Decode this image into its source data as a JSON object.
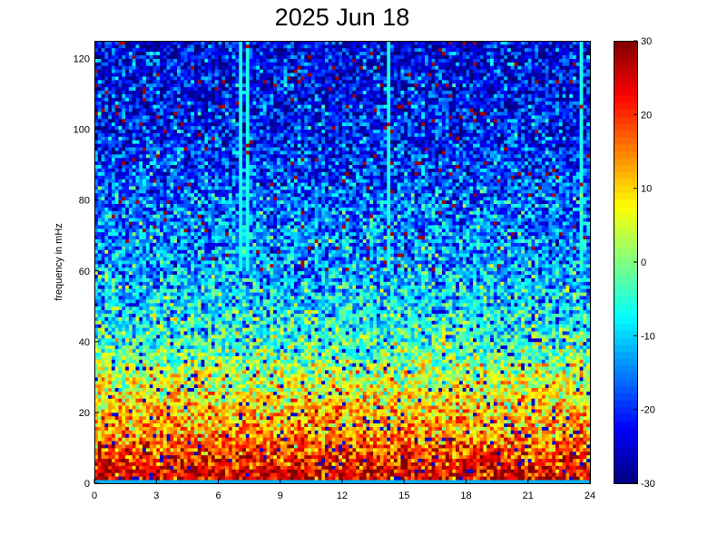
{
  "chart_data": {
    "type": "heatmap",
    "title": "2025 Jun 18",
    "xlabel": "",
    "ylabel": "frequency in mHz",
    "xlim": [
      0,
      24
    ],
    "ylim": [
      0,
      125
    ],
    "x_ticks": [
      "0",
      "3",
      "6",
      "9",
      "12",
      "15",
      "18",
      "21",
      "24"
    ],
    "y_ticks": [
      "0",
      "20",
      "40",
      "60",
      "80",
      "100",
      "120"
    ],
    "colorbar": {
      "range": [
        -30,
        30
      ],
      "ticks": [
        "30",
        "20",
        "10",
        "0",
        "-10",
        "-20",
        "-30"
      ],
      "colormap": "jet"
    },
    "rows_frequency_level": [
      {
        "frequency": 3,
        "level": 24
      },
      {
        "frequency": 8,
        "level": 20
      },
      {
        "frequency": 15,
        "level": 13
      },
      {
        "frequency": 22,
        "level": 10
      },
      {
        "frequency": 30,
        "level": 4
      },
      {
        "frequency": 40,
        "level": -4
      },
      {
        "frequency": 50,
        "level": -8
      },
      {
        "frequency": 60,
        "level": -12
      },
      {
        "frequency": 70,
        "level": -14
      },
      {
        "frequency": 80,
        "level": -16
      },
      {
        "frequency": 90,
        "level": -19
      },
      {
        "frequency": 100,
        "level": -21
      },
      {
        "frequency": 110,
        "level": -22
      },
      {
        "frequency": 120,
        "level": -23
      }
    ],
    "vertical_streaks_hours": [
      7.1,
      7.35,
      14.3,
      23.6
    ],
    "grid": false
  }
}
